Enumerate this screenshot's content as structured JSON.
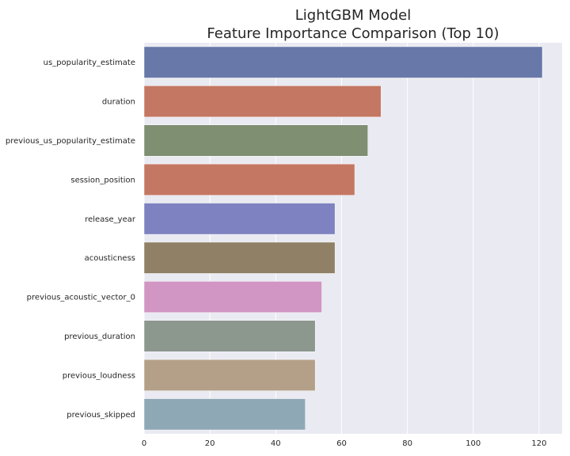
{
  "chart_data": {
    "type": "bar",
    "orientation": "horizontal",
    "title": "LightGBM Model\nFeature Importance Comparison (Top 10)",
    "title_lines": [
      "LightGBM Model",
      "Feature Importance Comparison (Top 10)"
    ],
    "xlabel": "",
    "ylabel": "",
    "categories": [
      "us_popularity_estimate",
      "duration",
      "previous_us_popularity_estimate",
      "session_position",
      "release_year",
      "acousticness",
      "previous_acoustic_vector_0",
      "previous_duration",
      "previous_loudness",
      "previous_skipped"
    ],
    "values": [
      121,
      72,
      68,
      64,
      58,
      58,
      54,
      52,
      52,
      49
    ],
    "colors": [
      "#6878a8",
      "#c47762",
      "#7f8f72",
      "#c47762",
      "#7f82c0",
      "#8f8066",
      "#d196c3",
      "#8c978e",
      "#b4a088",
      "#8fa8b6"
    ],
    "xlim": [
      0,
      127
    ],
    "xticks": [
      0,
      20,
      40,
      60,
      80,
      100,
      120
    ],
    "xtick_labels": [
      "0",
      "20",
      "40",
      "60",
      "80",
      "100",
      "120"
    ],
    "grid": true,
    "background": "#eaeaf2",
    "gridline_color": "#ffffff"
  }
}
